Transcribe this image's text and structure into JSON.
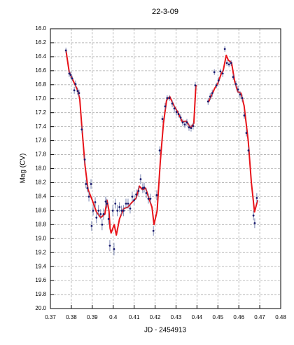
{
  "chart_data": {
    "type": "scatter",
    "title": "22-3-09",
    "xlabel": "JD - 2454913",
    "ylabel": "Mag (CV)",
    "xlim": [
      0.37,
      0.48
    ],
    "ylim": [
      16.0,
      20.0
    ],
    "yinverted": true,
    "grid": true,
    "xticks": [
      0.37,
      0.38,
      0.39,
      0.4,
      0.41,
      0.42,
      0.43,
      0.44,
      0.45,
      0.46,
      0.47,
      0.48
    ],
    "yticks": [
      {
        "value": 16.0,
        "label": "16.0"
      },
      {
        "value": 16.2,
        "label": "16.2"
      },
      {
        "value": 16.4,
        "label": "16.4"
      },
      {
        "value": 16.6,
        "label": "16.6"
      },
      {
        "value": 16.8,
        "label": "16.8"
      },
      {
        "value": 17.0,
        "label": "17.0"
      },
      {
        "value": 17.2,
        "label": "17.2"
      },
      {
        "value": 17.4,
        "label": "17.4"
      },
      {
        "value": 17.6,
        "label": "17.6"
      },
      {
        "value": 17.8,
        "label": "17.8"
      },
      {
        "value": 18.0,
        "label": "18.0"
      },
      {
        "value": 18.2,
        "label": "18.2"
      },
      {
        "value": 18.4,
        "label": "18.4"
      },
      {
        "value": 18.6,
        "label": "18.6"
      },
      {
        "value": 18.8,
        "label": "18.8"
      },
      {
        "value": 19.0,
        "label": "19.0"
      },
      {
        "value": 19.2,
        "label": "19.2"
      },
      {
        "value": 19.4,
        "label": "19.4"
      },
      {
        "value": 19.6,
        "label": "19.6"
      },
      {
        "value": 19.8,
        "label": "19.8"
      },
      {
        "value": 20.0,
        "label": "20.0"
      }
    ],
    "series": [
      {
        "type": "scatter",
        "color": "#1a1a6e",
        "error_color": "#5a6aa0",
        "x": [
          0.3774,
          0.379,
          0.3797,
          0.3804,
          0.3814,
          0.382,
          0.383,
          0.3837,
          0.385,
          0.3864,
          0.387,
          0.3877,
          0.3884,
          0.3894,
          0.3897,
          0.3904,
          0.3914,
          0.392,
          0.393,
          0.394,
          0.3947,
          0.3954,
          0.3964,
          0.397,
          0.3978,
          0.3984,
          0.3998,
          0.4004,
          0.401,
          0.402,
          0.403,
          0.404,
          0.405,
          0.4061,
          0.4071,
          0.4081,
          0.4091,
          0.41,
          0.411,
          0.4121,
          0.4131,
          0.4141,
          0.4148,
          0.4158,
          0.4168,
          0.4178,
          0.4192,
          0.4208,
          0.4222,
          0.4235,
          0.4248,
          0.4258,
          0.4269,
          0.4282,
          0.4292,
          0.4302,
          0.4312,
          0.4322,
          0.4332,
          0.4342,
          0.4352,
          0.4362,
          0.4372,
          0.4382,
          0.4392,
          0.4453,
          0.4463,
          0.4473,
          0.4483,
          0.4493,
          0.4503,
          0.4512,
          0.4523,
          0.4533,
          0.4543,
          0.4553,
          0.4563,
          0.4573,
          0.4586,
          0.4596,
          0.4606,
          0.4616,
          0.4626,
          0.4636,
          0.4646,
          0.467,
          0.4676,
          0.4686
        ],
        "values": [
          16.31,
          16.64,
          16.66,
          16.71,
          16.88,
          16.79,
          16.89,
          16.92,
          17.44,
          17.87,
          18.22,
          18.28,
          18.4,
          18.22,
          18.82,
          18.6,
          18.48,
          18.7,
          18.6,
          18.65,
          18.8,
          18.65,
          18.47,
          18.5,
          18.72,
          19.1,
          18.6,
          19.15,
          18.5,
          18.6,
          18.55,
          18.6,
          18.6,
          18.5,
          18.5,
          18.57,
          18.4,
          18.45,
          18.37,
          18.32,
          18.15,
          18.28,
          18.27,
          18.35,
          18.43,
          18.43,
          18.89,
          18.38,
          17.74,
          17.29,
          17.11,
          16.99,
          16.99,
          17.07,
          17.14,
          17.19,
          17.22,
          17.27,
          17.34,
          17.37,
          17.34,
          17.41,
          17.42,
          17.39,
          16.81,
          17.04,
          16.97,
          16.92,
          16.62,
          16.81,
          16.74,
          16.61,
          16.64,
          16.29,
          16.49,
          16.51,
          16.49,
          16.69,
          16.79,
          16.87,
          16.94,
          16.99,
          17.24,
          17.49,
          17.74,
          18.67,
          18.78,
          18.42
        ],
        "errors": [
          0.04,
          0.05,
          0.05,
          0.04,
          0.05,
          0.05,
          0.05,
          0.05,
          0.05,
          0.06,
          0.06,
          0.06,
          0.07,
          0.07,
          0.07,
          0.07,
          0.07,
          0.08,
          0.08,
          0.07,
          0.08,
          0.08,
          0.07,
          0.07,
          0.08,
          0.08,
          0.08,
          0.09,
          0.07,
          0.08,
          0.07,
          0.07,
          0.08,
          0.07,
          0.07,
          0.07,
          0.07,
          0.07,
          0.07,
          0.07,
          0.07,
          0.07,
          0.07,
          0.07,
          0.07,
          0.07,
          0.07,
          0.07,
          0.06,
          0.05,
          0.05,
          0.04,
          0.04,
          0.05,
          0.05,
          0.05,
          0.05,
          0.05,
          0.05,
          0.05,
          0.05,
          0.05,
          0.05,
          0.05,
          0.05,
          0.05,
          0.05,
          0.05,
          0.04,
          0.04,
          0.05,
          0.04,
          0.05,
          0.04,
          0.04,
          0.04,
          0.04,
          0.04,
          0.05,
          0.05,
          0.05,
          0.05,
          0.05,
          0.05,
          0.05,
          0.07,
          0.07,
          0.07
        ]
      },
      {
        "type": "line",
        "color": "#e8141a",
        "x": [
          0.3774,
          0.379,
          0.381,
          0.383,
          0.384,
          0.385,
          0.3865,
          0.388,
          0.39,
          0.392,
          0.394,
          0.396,
          0.397,
          0.398,
          0.3985,
          0.399,
          0.4005,
          0.4015,
          0.403,
          0.405,
          0.407,
          0.409,
          0.411,
          0.4125,
          0.414,
          0.4155,
          0.417,
          0.4185,
          0.4195,
          0.421,
          0.4225,
          0.424,
          0.4255,
          0.427,
          0.429,
          0.431,
          0.433,
          0.435,
          0.437,
          0.4385,
          0.4395,
          null,
          0.4455,
          0.447,
          0.4485,
          0.45,
          0.4515,
          0.4525,
          0.454,
          0.455,
          0.4565,
          0.458,
          0.4595,
          0.461,
          0.4625,
          0.4645,
          0.466,
          0.4675,
          0.469
        ],
        "values": [
          16.3,
          16.62,
          16.75,
          16.88,
          17.0,
          17.4,
          17.95,
          18.3,
          18.45,
          18.62,
          18.7,
          18.65,
          18.45,
          18.6,
          18.85,
          18.92,
          18.8,
          18.95,
          18.72,
          18.57,
          18.55,
          18.48,
          18.42,
          18.25,
          18.3,
          18.28,
          18.42,
          18.55,
          18.8,
          18.6,
          17.9,
          17.35,
          17.02,
          16.97,
          17.1,
          17.2,
          17.33,
          17.32,
          17.42,
          17.35,
          16.8,
          null,
          17.05,
          16.95,
          16.85,
          16.78,
          16.65,
          16.6,
          16.38,
          16.45,
          16.48,
          16.75,
          16.9,
          16.92,
          17.1,
          17.6,
          18.2,
          18.62,
          18.45
        ]
      }
    ]
  }
}
